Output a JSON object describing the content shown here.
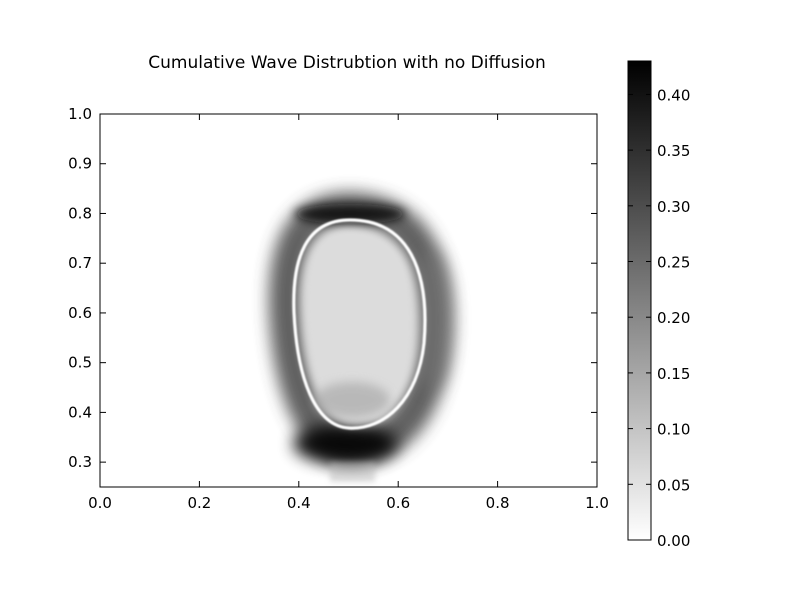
{
  "chart_data": {
    "type": "heatmap",
    "title": "Cumulative Wave Distrubtion with no Diffusion",
    "xlabel": "",
    "ylabel": "",
    "xlim": [
      0.0,
      1.0
    ],
    "ylim": [
      0.25,
      1.0
    ],
    "x_ticks": [
      "0.0",
      "0.2",
      "0.4",
      "0.6",
      "0.8",
      "1.0"
    ],
    "y_ticks": [
      "0.3",
      "0.4",
      "0.5",
      "0.6",
      "0.7",
      "0.8",
      "0.9",
      "1.0"
    ],
    "colormap": "gray_r",
    "colorbar": {
      "range": [
        0.0,
        0.43
      ],
      "ticks": [
        "0.00",
        "0.05",
        "0.10",
        "0.15",
        "0.20",
        "0.25",
        "0.30",
        "0.35",
        "0.40"
      ]
    },
    "grid": false,
    "feature": {
      "shape": "egg-shaped closed ring",
      "center_x": 0.5,
      "ring_x_range": [
        0.39,
        0.65
      ],
      "ring_y_range": [
        0.37,
        0.79
      ],
      "peak_bottom": {
        "x": 0.5,
        "y": 0.33,
        "value": 0.43
      },
      "peak_top": {
        "x": 0.5,
        "y": 0.8,
        "value": 0.38
      },
      "inner_line_value": 0.0,
      "interior_value": 0.07
    }
  }
}
